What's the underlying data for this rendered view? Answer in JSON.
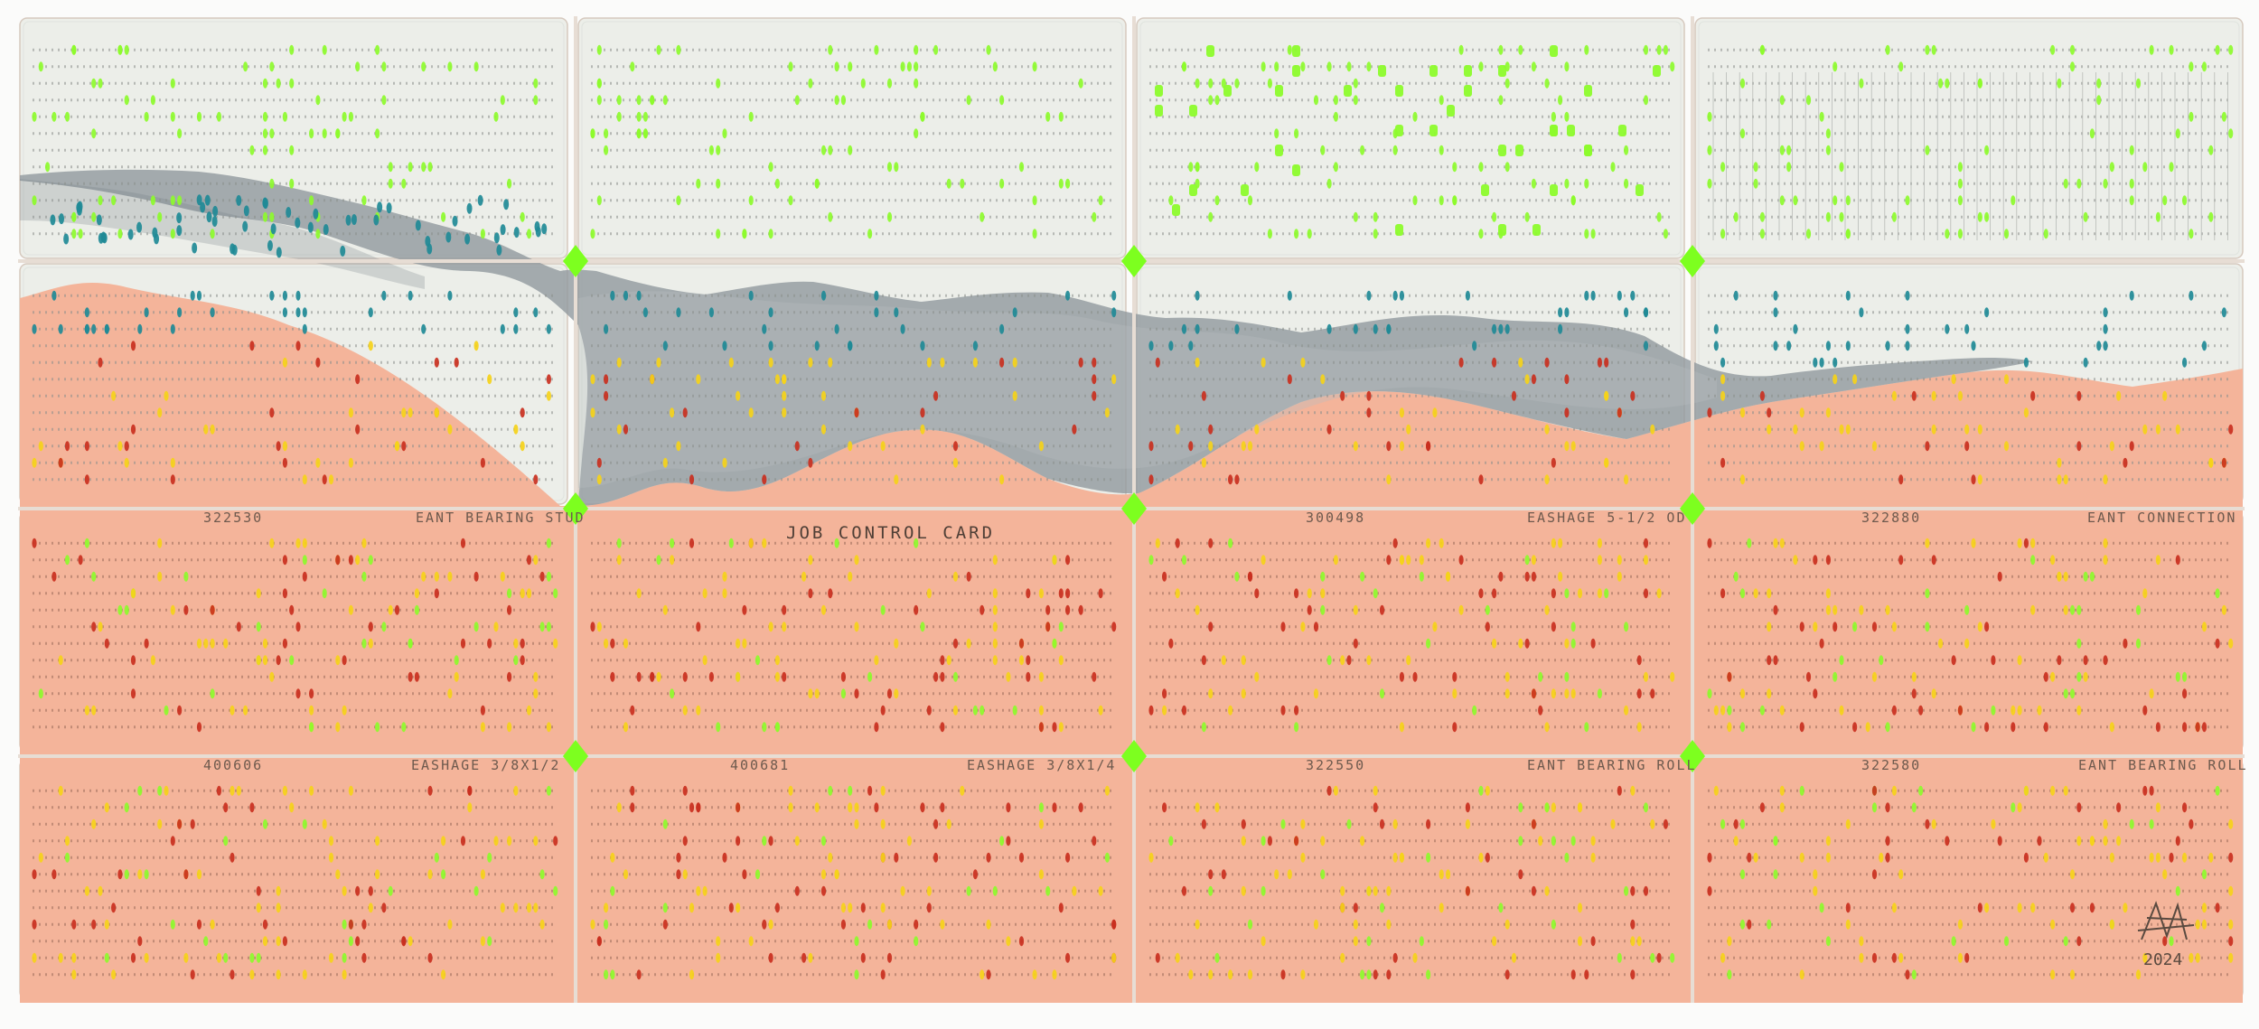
{
  "artwork": {
    "description_colors": {
      "card_white": "#eceee9",
      "card_peach": "#f4b49a",
      "mountain_gray": "#8d959a",
      "teal_holes": "#1f8a96",
      "green_holes": "#8dfb2c",
      "yellow_holes": "#f5d21a",
      "red_holes": "#c9301f",
      "joint_green": "#7dff1f"
    },
    "cards": [
      {
        "id": "r1c1",
        "label": "",
        "number": ""
      },
      {
        "id": "r1c2",
        "label": "",
        "number": ""
      },
      {
        "id": "r1c3",
        "label": "",
        "number": ""
      },
      {
        "id": "r1c4",
        "label": "",
        "number": ""
      },
      {
        "id": "r2c1",
        "label": "",
        "number": ""
      },
      {
        "id": "r2c2",
        "label": "",
        "number": ""
      },
      {
        "id": "r2c3",
        "label": "",
        "number": ""
      },
      {
        "id": "r2c4",
        "label": "",
        "number": ""
      },
      {
        "id": "r3c1",
        "label": "EANT BEARING STUD",
        "number": "322530"
      },
      {
        "id": "r3c2",
        "label": "JOB CONTROL CARD",
        "number": ""
      },
      {
        "id": "r3c3",
        "label": "EASHAGE 5-1/2 OD",
        "number": "300498"
      },
      {
        "id": "r3c4",
        "label": "EANT CONNECTION",
        "number": "322880"
      },
      {
        "id": "r4c1",
        "label": "EASHAGE 3/8X1/2",
        "number": "400606"
      },
      {
        "id": "r4c2",
        "label": "EASHAGE 3/8X1/4",
        "number": "400681"
      },
      {
        "id": "r4c3",
        "label": "EANT BEARING ROLL",
        "number": "322550"
      },
      {
        "id": "r4c4",
        "label": "EANT BEARING ROLL",
        "number": "322580"
      }
    ],
    "signature": {
      "scrawl": "ᕼ",
      "year": "2024"
    }
  }
}
